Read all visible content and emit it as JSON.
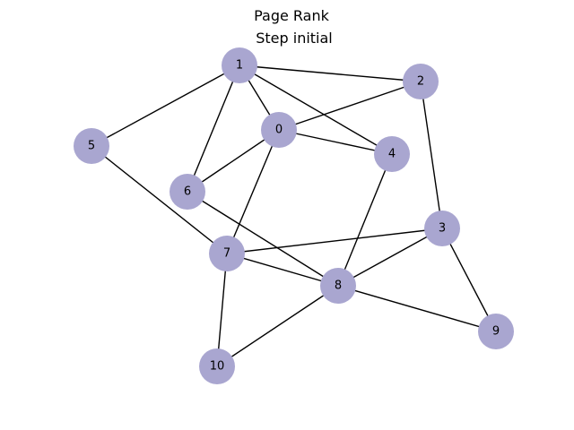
{
  "title": "Page Rank",
  "subtitle": "Step initial",
  "node_color": "#a9a6d0",
  "edge_color": "#000000",
  "nodes": [
    {
      "id": "0",
      "label": "0"
    },
    {
      "id": "1",
      "label": "1"
    },
    {
      "id": "2",
      "label": "2"
    },
    {
      "id": "3",
      "label": "3"
    },
    {
      "id": "4",
      "label": "4"
    },
    {
      "id": "5",
      "label": "5"
    },
    {
      "id": "6",
      "label": "6"
    },
    {
      "id": "7",
      "label": "7"
    },
    {
      "id": "8",
      "label": "8"
    },
    {
      "id": "9",
      "label": "9"
    },
    {
      "id": "10",
      "label": "10"
    }
  ],
  "edges": [
    [
      "1",
      "2"
    ],
    [
      "1",
      "0"
    ],
    [
      "1",
      "4"
    ],
    [
      "1",
      "5"
    ],
    [
      "1",
      "6"
    ],
    [
      "0",
      "2"
    ],
    [
      "0",
      "4"
    ],
    [
      "0",
      "6"
    ],
    [
      "0",
      "7"
    ],
    [
      "2",
      "3"
    ],
    [
      "4",
      "8"
    ],
    [
      "5",
      "7"
    ],
    [
      "6",
      "8"
    ],
    [
      "7",
      "3"
    ],
    [
      "7",
      "8"
    ],
    [
      "7",
      "10"
    ],
    [
      "3",
      "8"
    ],
    [
      "3",
      "9"
    ],
    [
      "8",
      "9"
    ],
    [
      "8",
      "10"
    ]
  ]
}
